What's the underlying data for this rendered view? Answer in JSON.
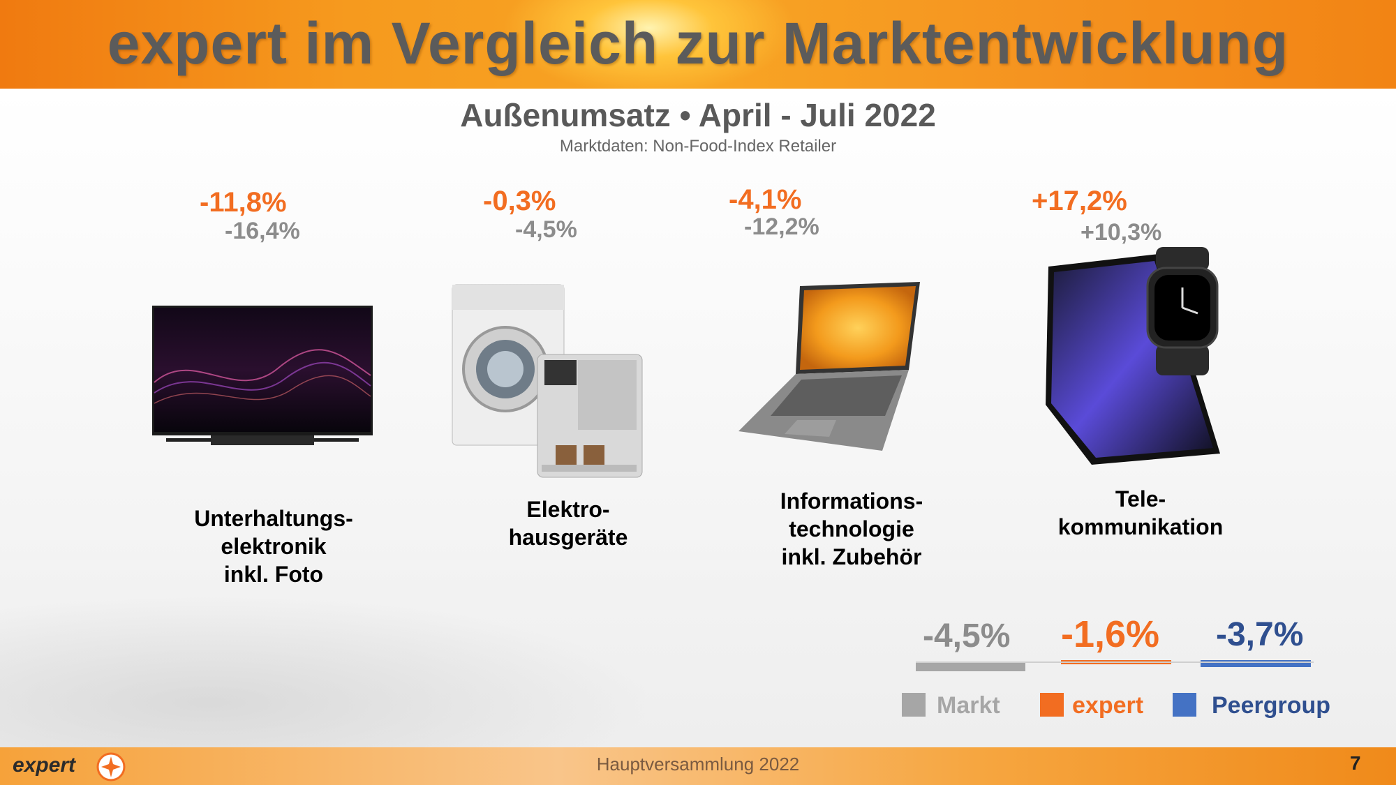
{
  "title": "expert im Vergleich zur Marktentwicklung",
  "subtitle": "Außenumsatz • April - Juli 2022",
  "source": "Marktdaten: Non-Food-Index Retailer",
  "categories": [
    {
      "label": "Unterhaltungs-\nelektronik\ninkl. Foto",
      "expert": "-11,8%",
      "markt": "-16,4%",
      "icon": "tv-icon"
    },
    {
      "label": "Elektro-\nhausgeräte",
      "expert": "-0,3%",
      "markt": "-4,5%",
      "icon": "washing-machine-coffee-icon"
    },
    {
      "label": "Informations-\ntechnologie\ninkl. Zubehör",
      "expert": "-4,1%",
      "markt": "-12,2%",
      "icon": "laptop-icon"
    },
    {
      "label": "Tele-\nkommunikation",
      "expert": "+17,2%",
      "markt": "+10,3%",
      "icon": "phone-watch-icon"
    }
  ],
  "summary": {
    "markt": "-4,5%",
    "expert": "-1,6%",
    "peergroup": "-3,7%"
  },
  "legend": {
    "markt": "Markt",
    "expert": "expert",
    "peergroup": "Peergroup"
  },
  "colors": {
    "markt": "#a6a6a6",
    "expert": "#f26d21",
    "peergroup": "#4472c4",
    "peergroup_text": "#2f4f8f"
  },
  "footer": {
    "text": "Hauptversammlung 2022",
    "page": "7",
    "logo": "expert"
  }
}
